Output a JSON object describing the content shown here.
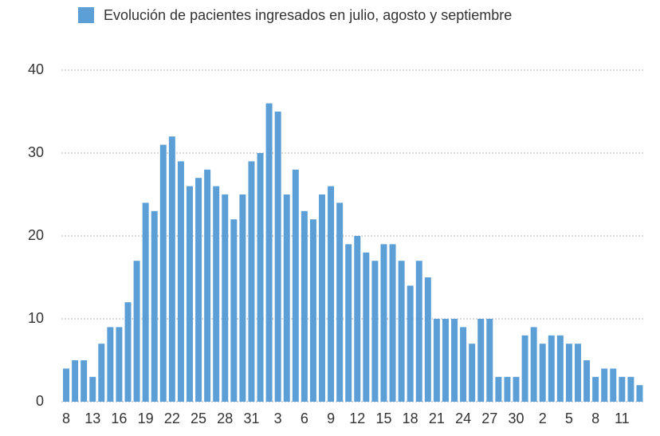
{
  "chart_data": {
    "type": "bar",
    "series": [
      {
        "name": "Evolución de pacientes ingresados en julio, agosto y septiembre",
        "color": "#5c9fd6",
        "values": [
          4,
          5,
          5,
          3,
          7,
          9,
          9,
          12,
          17,
          24,
          23,
          31,
          32,
          29,
          26,
          27,
          28,
          26,
          25,
          22,
          25,
          29,
          30,
          36,
          35,
          25,
          28,
          23,
          22,
          25,
          26,
          24,
          19,
          20,
          18,
          17,
          19,
          19,
          17,
          14,
          17,
          15,
          10,
          10,
          10,
          9,
          7,
          10,
          10,
          3,
          3,
          3,
          8,
          9,
          7,
          8,
          8,
          7,
          7,
          5,
          3,
          4,
          4,
          3,
          3,
          2
        ]
      }
    ],
    "categories": [
      "8",
      null,
      null,
      "13",
      null,
      null,
      "16",
      null,
      null,
      "19",
      null,
      null,
      "22",
      null,
      null,
      "25",
      null,
      null,
      "28",
      null,
      null,
      "31",
      null,
      null,
      "3",
      null,
      null,
      "6",
      null,
      null,
      "9",
      null,
      null,
      "12",
      null,
      null,
      "15",
      null,
      null,
      "18",
      null,
      null,
      "21",
      null,
      null,
      "24",
      null,
      null,
      "27",
      null,
      null,
      "30",
      null,
      null,
      "2",
      null,
      null,
      "5",
      null,
      null,
      "8",
      null,
      null,
      "11",
      null,
      null
    ],
    "ylim": [
      0,
      40
    ],
    "yticks": [
      0,
      10,
      20,
      30,
      40
    ],
    "grid": true
  }
}
